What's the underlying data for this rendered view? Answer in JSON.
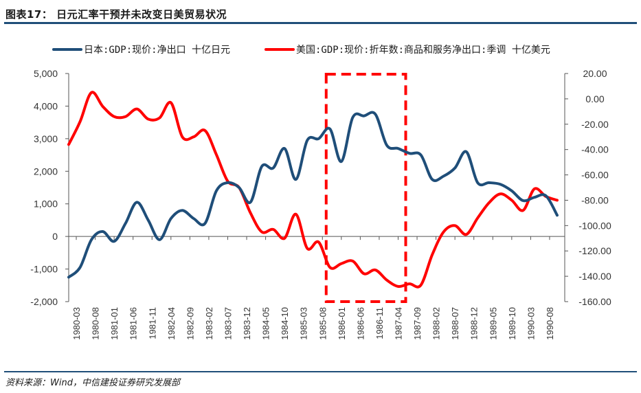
{
  "header": {
    "title": "图表17：  日元汇率干预并未改变日美贸易状况"
  },
  "footer": {
    "source": "资料来源：Wind，中信建投证券研究发展部"
  },
  "colors": {
    "series_japan": "#1f4e79",
    "series_us": "#ff0000",
    "highlight_box": "#ff0000",
    "rule": "#1f4e79"
  },
  "chart_data": {
    "type": "line",
    "title": "",
    "grid": false,
    "legend_position": "top",
    "x_tick_labels": [
      "1980-03",
      "1980-08",
      "1981-01",
      "1981-06",
      "1981-11",
      "1982-04",
      "1982-09",
      "1983-02",
      "1983-07",
      "1983-12",
      "1984-05",
      "1984-10",
      "1985-03",
      "1985-08",
      "1986-01",
      "1986-06",
      "1986-11",
      "1987-04",
      "1987-09",
      "1988-02",
      "1988-07",
      "1988-12",
      "1989-05",
      "1989-10",
      "1990-03",
      "1990-08"
    ],
    "y_left": {
      "ylim": [
        -2000,
        5000
      ],
      "ticks": [
        "-2,000",
        "-1,000",
        "0",
        "1,000",
        "2,000",
        "3,000",
        "4,000",
        "5,000"
      ],
      "tick_values": [
        -2000,
        -1000,
        0,
        1000,
        2000,
        3000,
        4000,
        5000
      ]
    },
    "y_right": {
      "ylim": [
        -160,
        20
      ],
      "ticks": [
        "-160.00",
        "-140.00",
        "-120.00",
        "-100.00",
        "-80.00",
        "-60.00",
        "-40.00",
        "-20.00",
        "0.00",
        "20.00"
      ],
      "tick_values": [
        -160,
        -140,
        -120,
        -100,
        -80,
        -60,
        -40,
        -20,
        0,
        20
      ]
    },
    "highlight_range": [
      "1985-09",
      "1987-06"
    ],
    "series": [
      {
        "name": "日本:GDP:现价:净出口 十亿日元",
        "axis": "left",
        "color": "#1f4e79",
        "x": [
          "1980-01",
          "1980-04",
          "1980-07",
          "1980-10",
          "1981-01",
          "1981-04",
          "1981-07",
          "1981-10",
          "1982-01",
          "1982-04",
          "1982-07",
          "1982-10",
          "1983-01",
          "1983-04",
          "1983-07",
          "1983-10",
          "1984-01",
          "1984-04",
          "1984-07",
          "1984-10",
          "1985-01",
          "1985-04",
          "1985-07",
          "1985-10",
          "1986-01",
          "1986-04",
          "1986-07",
          "1986-10",
          "1987-01",
          "1987-04",
          "1987-07",
          "1987-10",
          "1988-01",
          "1988-04",
          "1988-07",
          "1988-10",
          "1989-01",
          "1989-04",
          "1989-07",
          "1989-10",
          "1990-01",
          "1990-04",
          "1990-07",
          "1990-10"
        ],
        "y": [
          -1250,
          -950,
          -100,
          150,
          -150,
          400,
          1050,
          500,
          -100,
          550,
          800,
          550,
          400,
          1400,
          1650,
          1500,
          1050,
          2150,
          2100,
          2700,
          1750,
          2950,
          3000,
          3300,
          2300,
          3650,
          3700,
          3750,
          2800,
          2700,
          2550,
          2500,
          1750,
          1850,
          2100,
          2600,
          1650,
          1650,
          1600,
          1400,
          1100,
          1200,
          1250,
          650
        ]
      },
      {
        "name": "美国:GDP:现价:折年数:商品和服务净出口:季调 十亿美元",
        "axis": "right",
        "color": "#ff0000",
        "x": [
          "1980-01",
          "1980-04",
          "1980-07",
          "1980-10",
          "1981-01",
          "1981-04",
          "1981-07",
          "1981-10",
          "1982-01",
          "1982-04",
          "1982-07",
          "1982-10",
          "1983-01",
          "1983-04",
          "1983-07",
          "1983-10",
          "1984-01",
          "1984-04",
          "1984-07",
          "1984-10",
          "1985-01",
          "1985-04",
          "1985-07",
          "1985-10",
          "1986-01",
          "1986-04",
          "1986-07",
          "1986-10",
          "1987-01",
          "1987-04",
          "1987-07",
          "1987-10",
          "1988-01",
          "1988-04",
          "1988-07",
          "1988-10",
          "1989-01",
          "1989-04",
          "1989-07",
          "1989-10",
          "1990-01",
          "1990-04",
          "1990-07",
          "1990-10"
        ],
        "y": [
          -36,
          -18,
          5,
          -6,
          -14,
          -14,
          -8,
          -16,
          -15,
          -3,
          -30,
          -30,
          -25,
          -44,
          -65,
          -70,
          -90,
          -105,
          -103,
          -110,
          -91,
          -118,
          -113,
          -133,
          -130,
          -128,
          -138,
          -135,
          -143,
          -148,
          -146,
          -147,
          -123,
          -105,
          -100,
          -107,
          -94,
          -82,
          -75,
          -80,
          -88,
          -71,
          -77,
          -80
        ]
      }
    ]
  }
}
